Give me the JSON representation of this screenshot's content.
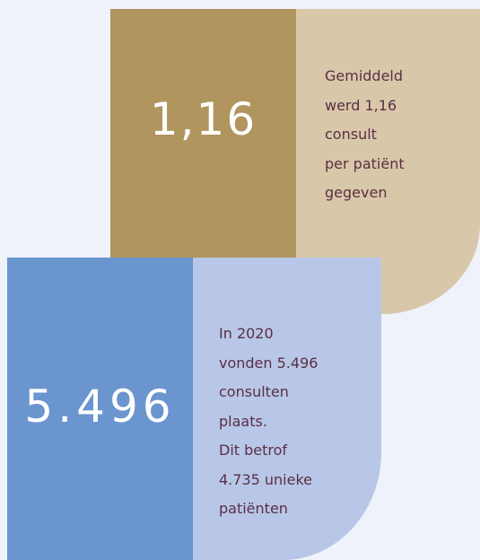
{
  "cards": [
    {
      "number": "1,16",
      "text": [
        "Gemiddeld",
        "werd 1,16",
        "consult",
        "per patiënt",
        "gegeven"
      ]
    },
    {
      "number": "5.496",
      "text": [
        "In 2020",
        "vonden 5.496",
        "consulten",
        "plaats.",
        "Dit betrof",
        "4.735 unieke",
        "patiënten"
      ]
    }
  ]
}
